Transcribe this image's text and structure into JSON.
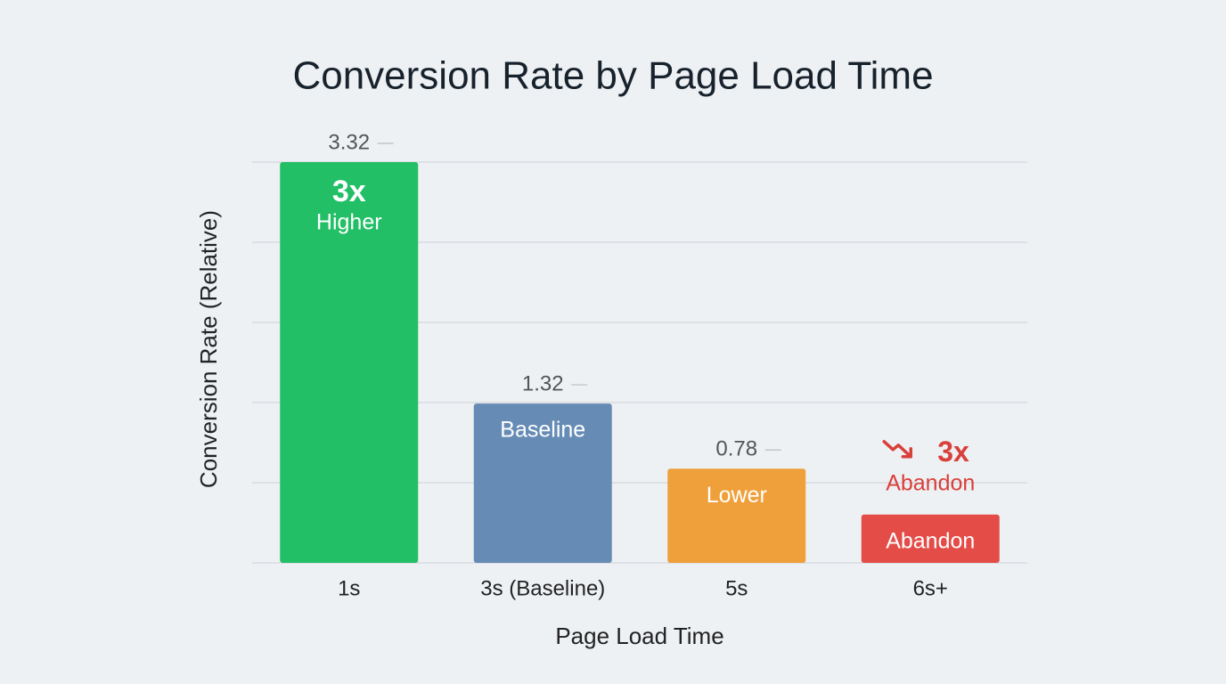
{
  "chart_data": {
    "type": "bar",
    "title": "Conversion Rate by Page Load Time",
    "x_label": "Page Load Time",
    "y_label": "Conversion Rate (Relative)",
    "categories": [
      "1s",
      "3s (Baseline)",
      "5s",
      "6s+"
    ],
    "values": [
      3.32,
      1.32,
      0.78,
      0.4
    ],
    "value_labels": [
      "3.32",
      "1.32",
      "0.78",
      null
    ],
    "colors": [
      "#22bf66",
      "#668cb6",
      "#efa03a",
      "#e44c48"
    ],
    "bar_labels": [
      [
        "3x",
        "Higher"
      ],
      [
        "Baseline"
      ],
      [
        "Lower"
      ],
      [
        "Abandon"
      ]
    ],
    "annotation": {
      "category": 3,
      "text": "3x",
      "subtext": "Abandon",
      "color": "#d9403a"
    },
    "ylim": [
      0,
      3.32
    ],
    "grid": true
  }
}
